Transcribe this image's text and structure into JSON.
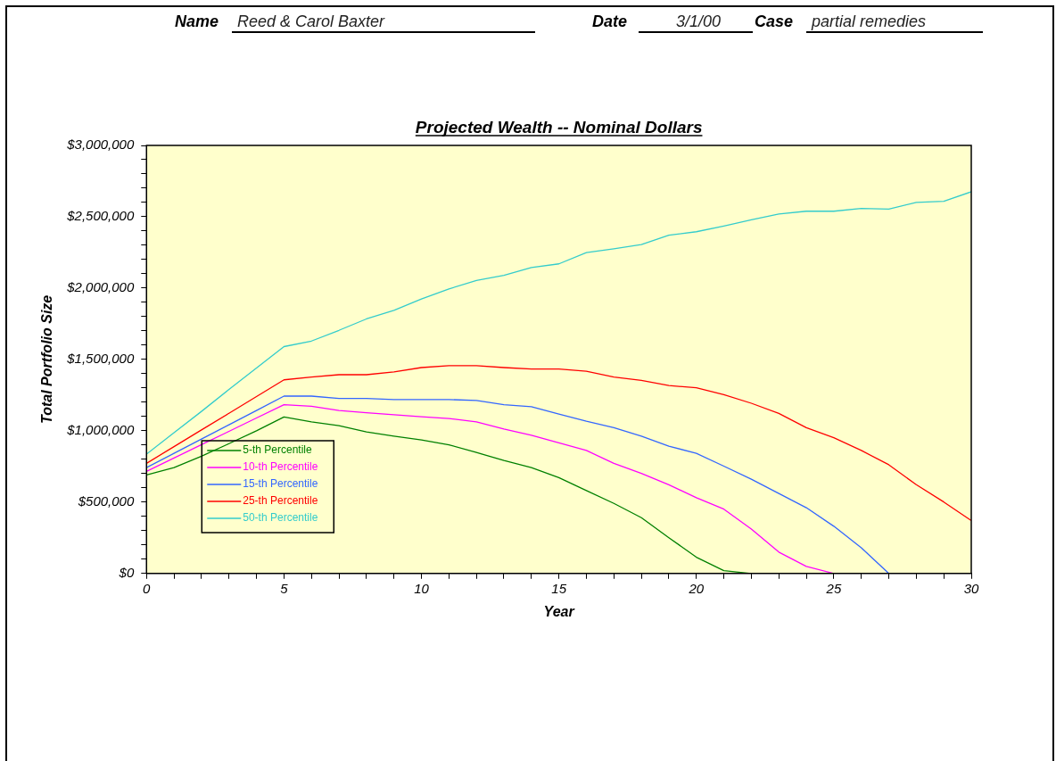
{
  "chart_data": {
    "type": "line",
    "title": "Projected Wealth -- Nominal Dollars",
    "xlabel": "Year",
    "ylabel": "Total Portfolio Size",
    "annotations": [
      "Name",
      "Reed & Carol Baxter",
      "Date",
      "3/1/00",
      "Case",
      "partial remedies"
    ],
    "x": [
      0,
      1,
      2,
      3,
      4,
      5,
      6,
      7,
      8,
      9,
      10,
      11,
      12,
      13,
      14,
      15,
      16,
      17,
      18,
      19,
      20,
      21,
      22,
      23,
      24,
      25,
      26,
      27,
      28,
      29,
      30
    ],
    "series": [
      {
        "name": "5-th Percentile",
        "color": "#008000",
        "values": [
          691000,
          742000,
          822000,
          910000,
          1000000,
          1097000,
          1062000,
          1036000,
          992000,
          962000,
          936000,
          902000,
          848000,
          792000,
          742000,
          672000,
          581000,
          491000,
          391000,
          251000,
          114000,
          20000,
          0,
          null,
          null,
          null,
          null,
          null,
          null,
          null,
          null
        ]
      },
      {
        "name": "10-th Percentile",
        "color": "#ff00ff",
        "values": [
          715000,
          809000,
          903000,
          996000,
          1090000,
          1183000,
          1172000,
          1142000,
          1127000,
          1112000,
          1098000,
          1086000,
          1062000,
          1012000,
          968000,
          916000,
          862000,
          772000,
          702000,
          622000,
          531000,
          451000,
          311000,
          150000,
          50000,
          0,
          null,
          null,
          null,
          null,
          null
        ]
      },
      {
        "name": "15-th Percentile",
        "color": "#3366ff",
        "values": [
          742000,
          842000,
          942000,
          1042000,
          1142000,
          1243000,
          1243000,
          1227000,
          1227000,
          1219000,
          1219000,
          1219000,
          1213000,
          1183000,
          1169000,
          1117000,
          1067000,
          1022000,
          962000,
          892000,
          842000,
          752000,
          661000,
          561000,
          461000,
          331000,
          180000,
          0,
          null,
          null,
          null
        ]
      },
      {
        "name": "25-th Percentile",
        "color": "#ff0000",
        "values": [
          772000,
          889000,
          1006000,
          1123000,
          1240000,
          1357000,
          1377000,
          1393000,
          1393000,
          1413000,
          1443000,
          1457000,
          1457000,
          1443000,
          1433000,
          1433000,
          1417000,
          1377000,
          1353000,
          1317000,
          1301000,
          1253000,
          1193000,
          1122000,
          1022000,
          952000,
          862000,
          762000,
          622000,
          501000,
          371000
        ]
      },
      {
        "name": "50-th Percentile",
        "color": "#33cccc",
        "values": [
          836000,
          986000,
          1136000,
          1290000,
          1440000,
          1590000,
          1629000,
          1704000,
          1784000,
          1844000,
          1924000,
          1994000,
          2054000,
          2089000,
          2144000,
          2170000,
          2249000,
          2275000,
          2305000,
          2371000,
          2395000,
          2435000,
          2479000,
          2519000,
          2539000,
          2539000,
          2559000,
          2554000,
          2601000,
          2609000,
          2675000
        ]
      }
    ],
    "xlim": [
      0,
      30
    ],
    "xticks": [
      0,
      {
        "value": 1,
        "label": null
      },
      {
        "value": 2,
        "label": null
      },
      {
        "value": 3,
        "label": null
      },
      {
        "value": 4,
        "label": null
      },
      5,
      {
        "value": 6,
        "label": null
      },
      {
        "value": 7,
        "label": null
      },
      {
        "value": 8,
        "label": null
      },
      {
        "value": 9,
        "label": null
      },
      10,
      {
        "value": 11,
        "label": null
      },
      {
        "value": 12,
        "label": null
      },
      {
        "value": 13,
        "label": null
      },
      {
        "value": 14,
        "label": null
      },
      15,
      {
        "value": 16,
        "label": null
      },
      {
        "value": 17,
        "label": null
      },
      {
        "value": 18,
        "label": null
      },
      {
        "value": 19,
        "label": null
      },
      20,
      {
        "value": 21,
        "label": null
      },
      {
        "value": 22,
        "label": null
      },
      {
        "value": 23,
        "label": null
      },
      {
        "value": 24,
        "label": null
      },
      25,
      {
        "value": 26,
        "label": null
      },
      {
        "value": 27,
        "label": null
      },
      {
        "value": 28,
        "label": null
      },
      {
        "value": 29,
        "label": null
      },
      30
    ],
    "ylim": [
      0,
      3000000
    ],
    "yticks": [
      {
        "value": 0,
        "label": "$0"
      },
      {
        "value": 100000,
        "label": null
      },
      {
        "value": 200000,
        "label": null
      },
      {
        "value": 300000,
        "label": null
      },
      {
        "value": 400000,
        "label": null
      },
      {
        "value": 500000,
        "label": "$500,000"
      },
      {
        "value": 600000,
        "label": null
      },
      {
        "value": 700000,
        "label": null
      },
      {
        "value": 800000,
        "label": null
      },
      {
        "value": 900000,
        "label": null
      },
      {
        "value": 1000000,
        "label": "$1,000,000"
      },
      {
        "value": 1100000,
        "label": null
      },
      {
        "value": 1200000,
        "label": null
      },
      {
        "value": 1300000,
        "label": null
      },
      {
        "value": 1400000,
        "label": null
      },
      {
        "value": 1500000,
        "label": "$1,500,000"
      },
      {
        "value": 1600000,
        "label": null
      },
      {
        "value": 1700000,
        "label": null
      },
      {
        "value": 1800000,
        "label": null
      },
      {
        "value": 1900000,
        "label": null
      },
      {
        "value": 2000000,
        "label": "$2,000,000"
      },
      {
        "value": 2100000,
        "label": null
      },
      {
        "value": 2200000,
        "label": null
      },
      {
        "value": 2300000,
        "label": null
      },
      {
        "value": 2400000,
        "label": null
      },
      {
        "value": 2500000,
        "label": "$2,500,000"
      },
      {
        "value": 2600000,
        "label": null
      },
      {
        "value": 2700000,
        "label": null
      },
      {
        "value": 2800000,
        "label": null
      },
      {
        "value": 2900000,
        "label": null
      },
      {
        "value": 3000000,
        "label": "$3,000,000"
      }
    ],
    "grid": false,
    "legend": "left",
    "marker": "none",
    "line_style": "solid"
  }
}
